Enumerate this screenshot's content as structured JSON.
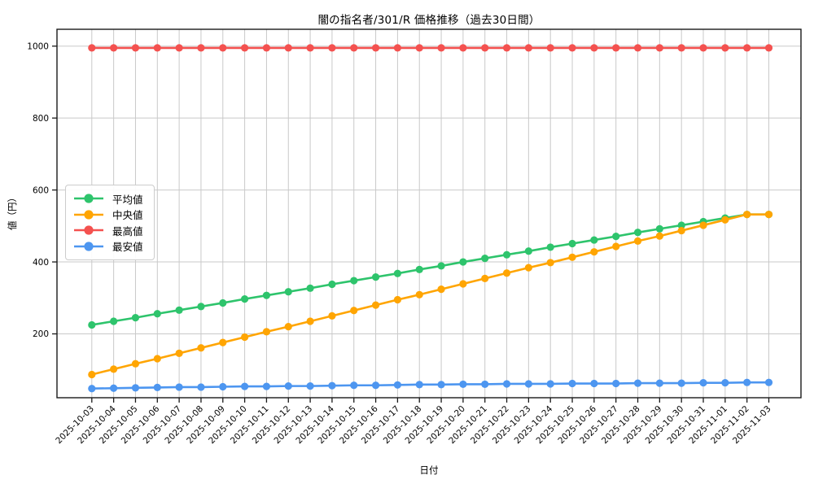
{
  "chart_data": {
    "type": "line",
    "title": "闇の指名者/301/R 価格推移（過去30日間）",
    "xlabel": "日付",
    "ylabel": "値（円）",
    "grid": true,
    "legend_position": "center left",
    "yticks": [
      200,
      400,
      600,
      800,
      1000
    ],
    "ylim": [
      22,
      1047
    ],
    "x": [
      "2025-10-03",
      "2025-10-04",
      "2025-10-05",
      "2025-10-06",
      "2025-10-07",
      "2025-10-08",
      "2025-10-09",
      "2025-10-10",
      "2025-10-11",
      "2025-10-12",
      "2025-10-13",
      "2025-10-14",
      "2025-10-15",
      "2025-10-16",
      "2025-10-17",
      "2025-10-18",
      "2025-10-19",
      "2025-10-20",
      "2025-10-21",
      "2025-10-22",
      "2025-10-23",
      "2025-10-24",
      "2025-10-25",
      "2025-10-26",
      "2025-10-27",
      "2025-10-28",
      "2025-10-29",
      "2025-10-30",
      "2025-10-31",
      "2025-11-01",
      "2025-11-02",
      "2025-11-03"
    ],
    "series": [
      {
        "key": "average",
        "name": "平均値",
        "color": "#2ec46c",
        "values": [
          225,
          235,
          245,
          256,
          266,
          276,
          286,
          297,
          307,
          317,
          327,
          338,
          348,
          358,
          368,
          379,
          389,
          400,
          410,
          420,
          430,
          441,
          451,
          461,
          471,
          482,
          492,
          502,
          512,
          522,
          532,
          532
        ]
      },
      {
        "key": "median",
        "name": "中央値",
        "color": "#ffa502",
        "values": [
          87,
          102,
          117,
          131,
          146,
          161,
          176,
          191,
          206,
          220,
          235,
          250,
          265,
          280,
          295,
          309,
          324,
          339,
          354,
          369,
          384,
          398,
          413,
          428,
          443,
          458,
          472,
          487,
          502,
          517,
          532,
          532
        ]
      },
      {
        "key": "max",
        "name": "最高値",
        "color": "#f4514f",
        "values": [
          995,
          995,
          995,
          995,
          995,
          995,
          995,
          995,
          995,
          995,
          995,
          995,
          995,
          995,
          995,
          995,
          995,
          995,
          995,
          995,
          995,
          995,
          995,
          995,
          995,
          995,
          995,
          995,
          995,
          995,
          995,
          995
        ]
      },
      {
        "key": "min",
        "name": "最安値",
        "color": "#4d96f0",
        "values": [
          48,
          49,
          50,
          51,
          52,
          52,
          53,
          54,
          54,
          55,
          55,
          56,
          57,
          57,
          58,
          59,
          59,
          60,
          60,
          61,
          61,
          61,
          62,
          62,
          62,
          63,
          63,
          63,
          64,
          64,
          65,
          65
        ]
      }
    ],
    "colors": {
      "grid": "#c9c9c9",
      "spine": "#1a1a1a",
      "text": "#000000"
    }
  }
}
